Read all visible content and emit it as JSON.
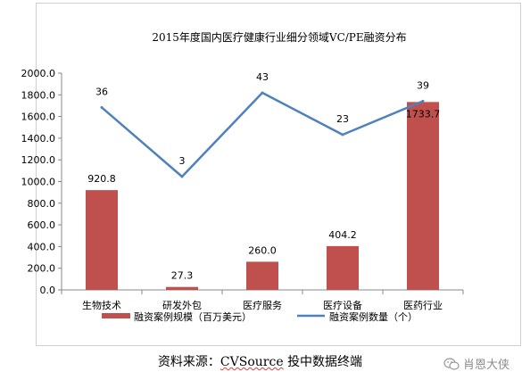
{
  "chart_data": {
    "type": "bar+line",
    "title": "2015年度国内医疗健康行业细分领域VC/PE融资分布",
    "categories": [
      "生物技术",
      "研发外包",
      "医疗服务",
      "医疗设备",
      "医药行业"
    ],
    "series": [
      {
        "name": "融资案例规模（百万美元）",
        "type": "bar",
        "values": [
          920.8,
          27.3,
          260.0,
          404.2,
          1733.7
        ],
        "value_labels": [
          "920.8",
          "27.3",
          "260.0",
          "404.2",
          "1733.7"
        ],
        "color": "#c0504d"
      },
      {
        "name": "融资案例数量（个）",
        "type": "line",
        "values": [
          36,
          3,
          43,
          23,
          39
        ],
        "value_labels": [
          "36",
          "3",
          "43",
          "23",
          "39"
        ],
        "color": "#4f81bd"
      }
    ],
    "y_ticks": [
      "0.0",
      "200.0",
      "400.0",
      "600.0",
      "800.0",
      "1000.0",
      "1200.0",
      "1400.0",
      "1600.0",
      "1800.0",
      "2000.0"
    ],
    "ylim": [
      0,
      2000
    ],
    "grid": false,
    "legend_position": "bottom"
  },
  "footer": {
    "source_prefix": "资料来源：",
    "source_name": "CVSource",
    "source_suffix": "投中数据终端"
  },
  "watermark": {
    "text": "肖恩大侠",
    "icon": "wechat-icon"
  }
}
